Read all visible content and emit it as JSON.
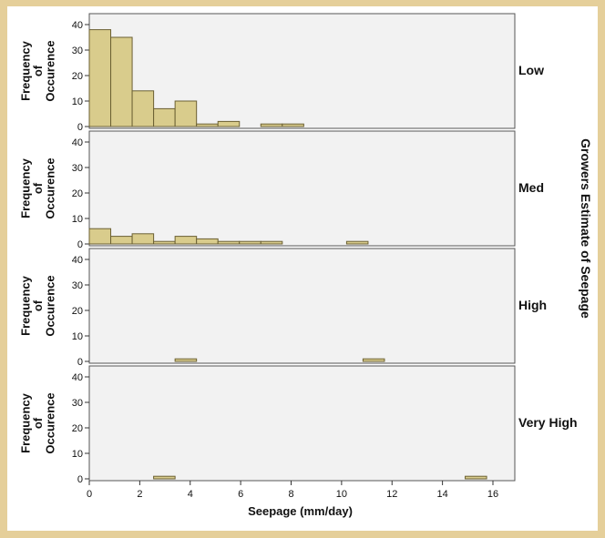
{
  "chart_data": {
    "type": "bar",
    "subtype": "faceted-histogram",
    "xlabel": "Seepage (mm/day)",
    "ylabel": "Frequency\nof\nOccurence",
    "facet_label": "Growers Estimate of Seepage",
    "xlim": [
      0,
      16.5
    ],
    "ylim": [
      0,
      42
    ],
    "xticks": [
      0,
      2,
      4,
      6,
      8,
      10,
      12,
      14,
      16
    ],
    "yticks": [
      0,
      10,
      20,
      30,
      40
    ],
    "bin_width": 0.85,
    "colors": {
      "bar": "#d9cc8c",
      "bar_edge": "#6b6033",
      "panel_bg": "#f2f2f2",
      "page_bg": "#e5cf9a"
    },
    "panels": [
      {
        "name": "Low",
        "bins": [
          {
            "x0": 0.0,
            "count": 38
          },
          {
            "x0": 0.85,
            "count": 35
          },
          {
            "x0": 1.7,
            "count": 14
          },
          {
            "x0": 2.55,
            "count": 7
          },
          {
            "x0": 3.4,
            "count": 10
          },
          {
            "x0": 4.25,
            "count": 1
          },
          {
            "x0": 5.1,
            "count": 2
          },
          {
            "x0": 6.8,
            "count": 1
          },
          {
            "x0": 7.65,
            "count": 1
          }
        ]
      },
      {
        "name": "Med",
        "bins": [
          {
            "x0": 0.0,
            "count": 6
          },
          {
            "x0": 0.85,
            "count": 3
          },
          {
            "x0": 1.7,
            "count": 4
          },
          {
            "x0": 2.55,
            "count": 1
          },
          {
            "x0": 3.4,
            "count": 3
          },
          {
            "x0": 4.25,
            "count": 2
          },
          {
            "x0": 5.1,
            "count": 1
          },
          {
            "x0": 5.95,
            "count": 1
          },
          {
            "x0": 6.8,
            "count": 1
          },
          {
            "x0": 10.2,
            "count": 1
          }
        ]
      },
      {
        "name": "High",
        "bins": [
          {
            "x0": 3.4,
            "count": 1
          },
          {
            "x0": 10.85,
            "count": 1
          }
        ]
      },
      {
        "name": "Very High",
        "bins": [
          {
            "x0": 2.55,
            "count": 1
          },
          {
            "x0": 14.9,
            "count": 1
          }
        ]
      }
    ]
  }
}
